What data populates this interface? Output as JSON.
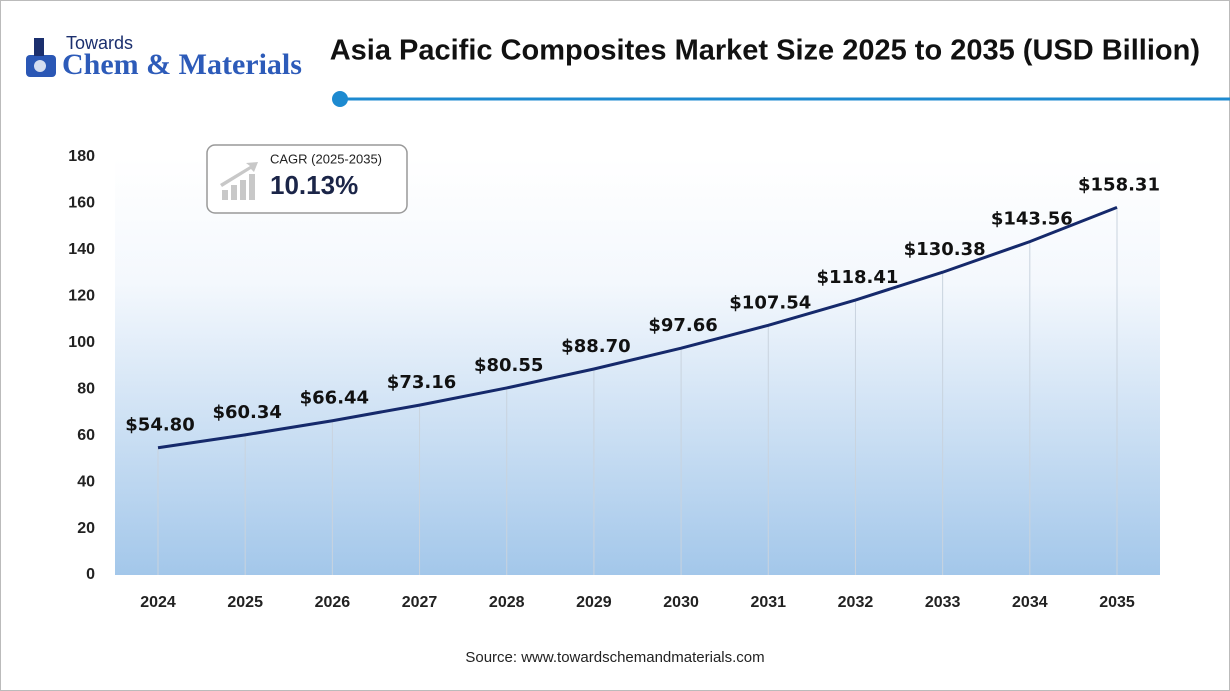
{
  "chart_data": {
    "type": "line",
    "title": "Asia Pacific Composites Market Size 2025 to 2035 (USD Billion)",
    "logo": {
      "top": "Towards",
      "name": "Chem & Materials"
    },
    "annotation": {
      "label": "CAGR (2025-2035)",
      "value": "10.13%"
    },
    "source": "Source: www.towardschemandmaterials.com",
    "categories": [
      "2024",
      "2025",
      "2026",
      "2027",
      "2028",
      "2029",
      "2030",
      "2031",
      "2032",
      "2033",
      "2034",
      "2035"
    ],
    "values": [
      54.8,
      60.34,
      66.44,
      73.16,
      80.55,
      88.7,
      97.66,
      107.54,
      118.41,
      130.38,
      143.56,
      158.31
    ],
    "value_labels": [
      "$54.80",
      "$60.34",
      "$66.44",
      "$73.16",
      "$80.55",
      "$88.70",
      "$97.66",
      "$107.54",
      "$118.41",
      "$130.38",
      "$143.56",
      "$158.31"
    ],
    "color": "#15296b",
    "ylim": [
      0,
      180
    ],
    "yticks": [
      0,
      20,
      40,
      60,
      80,
      100,
      120,
      140,
      160,
      180
    ]
  }
}
